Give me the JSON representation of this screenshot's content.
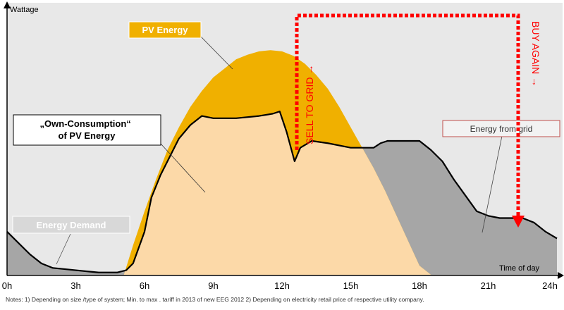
{
  "chart_data": {
    "type": "area",
    "ylabel": "Wattage",
    "xlabel": "Time of day",
    "x_ticks": [
      "0h",
      "3h",
      "6h",
      "9h",
      "12h",
      "15h",
      "18h",
      "21h",
      "24h"
    ],
    "x_unit": "hours",
    "xlim": [
      0,
      24
    ],
    "ylim": [
      0,
      1
    ],
    "grid": false,
    "series": [
      {
        "name": "PV Energy",
        "color": "#F0B000",
        "x": [
          5.1,
          5.5,
          6.0,
          6.5,
          7.0,
          7.5,
          8.0,
          8.5,
          9.0,
          9.5,
          10.0,
          10.5,
          11.0,
          11.5,
          12.0,
          12.5,
          13.0,
          13.5,
          14.0,
          14.5,
          15.0,
          15.5,
          16.0,
          16.5,
          17.0,
          17.5,
          18.0,
          18.5
        ],
        "y": [
          0.0,
          0.13,
          0.28,
          0.42,
          0.55,
          0.65,
          0.74,
          0.81,
          0.87,
          0.91,
          0.95,
          0.97,
          0.985,
          0.99,
          0.985,
          0.965,
          0.93,
          0.88,
          0.82,
          0.74,
          0.65,
          0.56,
          0.47,
          0.37,
          0.26,
          0.15,
          0.04,
          0.0
        ]
      },
      {
        "name": "Energy Demand",
        "color": "#A6A6A6",
        "x": [
          0,
          0.5,
          1.0,
          1.5,
          2.0,
          3.0,
          4.0,
          4.8,
          5.2,
          5.5,
          6.0,
          6.3,
          6.7,
          7.0,
          7.5,
          8.0,
          8.5,
          9.0,
          10.0,
          11.0,
          11.6,
          11.9,
          12.2,
          12.55,
          12.8,
          13.3,
          14.0,
          15.0,
          16.0,
          16.3,
          16.6,
          17.0,
          17.5,
          18.0,
          18.5,
          19.0,
          19.5,
          20.0,
          20.5,
          21.0,
          21.5,
          22.0,
          22.5,
          23.0,
          23.5,
          24.0
        ],
        "y": [
          0.19,
          0.14,
          0.09,
          0.05,
          0.03,
          0.02,
          0.01,
          0.01,
          0.02,
          0.05,
          0.19,
          0.34,
          0.44,
          0.5,
          0.6,
          0.66,
          0.7,
          0.69,
          0.69,
          0.7,
          0.71,
          0.72,
          0.63,
          0.5,
          0.56,
          0.59,
          0.58,
          0.56,
          0.56,
          0.58,
          0.59,
          0.59,
          0.59,
          0.59,
          0.55,
          0.5,
          0.42,
          0.35,
          0.28,
          0.26,
          0.25,
          0.25,
          0.25,
          0.23,
          0.19,
          0.16
        ]
      }
    ],
    "annotations": [
      {
        "text": "PV Energy",
        "box": "yes"
      },
      {
        "text": "„Own-Consumption“\nof PV Energy",
        "box": "yes"
      },
      {
        "text": "Energy Demand",
        "box": "yes"
      },
      {
        "text": "Energy from grid",
        "box": "yes"
      },
      {
        "text": "SELL TO GRID →",
        "color": "#FF0000"
      },
      {
        "text": "BUY AGAIN →",
        "color": "#FF0000"
      }
    ],
    "self_consumption_color": "#FCD9A8",
    "grid_arrow_color": "#FF0000"
  },
  "footer": {
    "notes": "Notes: 1) Depending on size /type of system; Min. to max . tariff in 2013 of new EEG 2012     2) Depending on electricity retail price of respective utility company."
  }
}
